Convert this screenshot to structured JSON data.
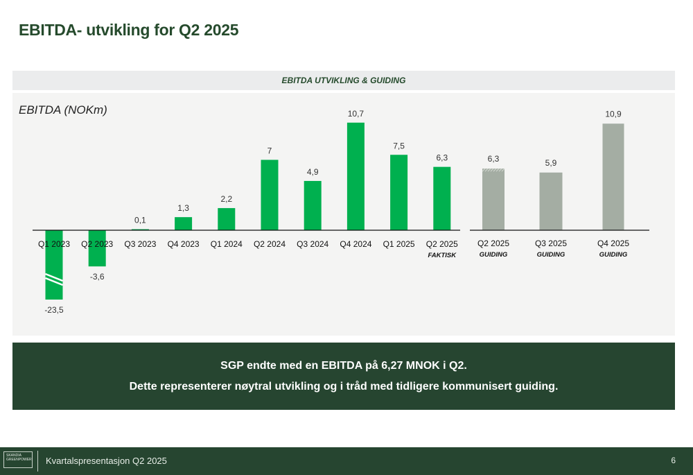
{
  "page": {
    "title": "EBITDA- utvikling for Q2 2025",
    "section_header": "EBITDA UTVIKLING & GUIDING"
  },
  "callout": {
    "line1": "SGP endte med en EBITDA på 6,27 MNOK i Q2.",
    "line2": "Dette representerer nøytral utvikling og i tråd med tidligere kommunisert guiding."
  },
  "footer": {
    "logo_line1": "SKANDIA",
    "logo_line2": "GREENPOWER",
    "text": "Kvartalspresentasjon Q2 2025",
    "page_number": "6"
  },
  "colors": {
    "actual": "#00b04f",
    "guiding": "#a4ada3",
    "brand_dark": "#264530"
  },
  "chart_data": [
    {
      "type": "bar",
      "title": "EBITDA (NOKm)",
      "ylabel": "EBITDA (NOKm)",
      "xlabel": "",
      "series_name": "Faktisk",
      "categories": [
        "Q1 2023",
        "Q2 2023",
        "Q3 2023",
        "Q4 2023",
        "Q1 2024",
        "Q2 2024",
        "Q3 2024",
        "Q4 2024",
        "Q1 2025",
        "Q2 2025"
      ],
      "values": [
        -23.5,
        -3.6,
        0.1,
        1.3,
        2.2,
        7,
        4.9,
        10.7,
        7.5,
        6.3
      ],
      "labels": [
        "-23,5",
        "-3,6",
        "0,1",
        "1,3",
        "2,2",
        "7",
        "4,9",
        "10,7",
        "7,5",
        "6,3"
      ],
      "sublabels": [
        "",
        "",
        "",
        "",
        "",
        "",
        "",
        "",
        "",
        "FAKTISK"
      ],
      "broken_axis_category": "Q1 2023",
      "grid": false
    },
    {
      "type": "bar",
      "series_name": "Guiding",
      "categories": [
        "Q2 2025",
        "Q3 2025",
        "Q4 2025"
      ],
      "values": [
        6.3,
        5.9,
        10.9
      ],
      "labels": [
        "6,3",
        "5,9",
        "10,9"
      ],
      "sublabels": [
        "GUIDING",
        "GUIDING",
        "GUIDING"
      ],
      "grid": false
    }
  ]
}
